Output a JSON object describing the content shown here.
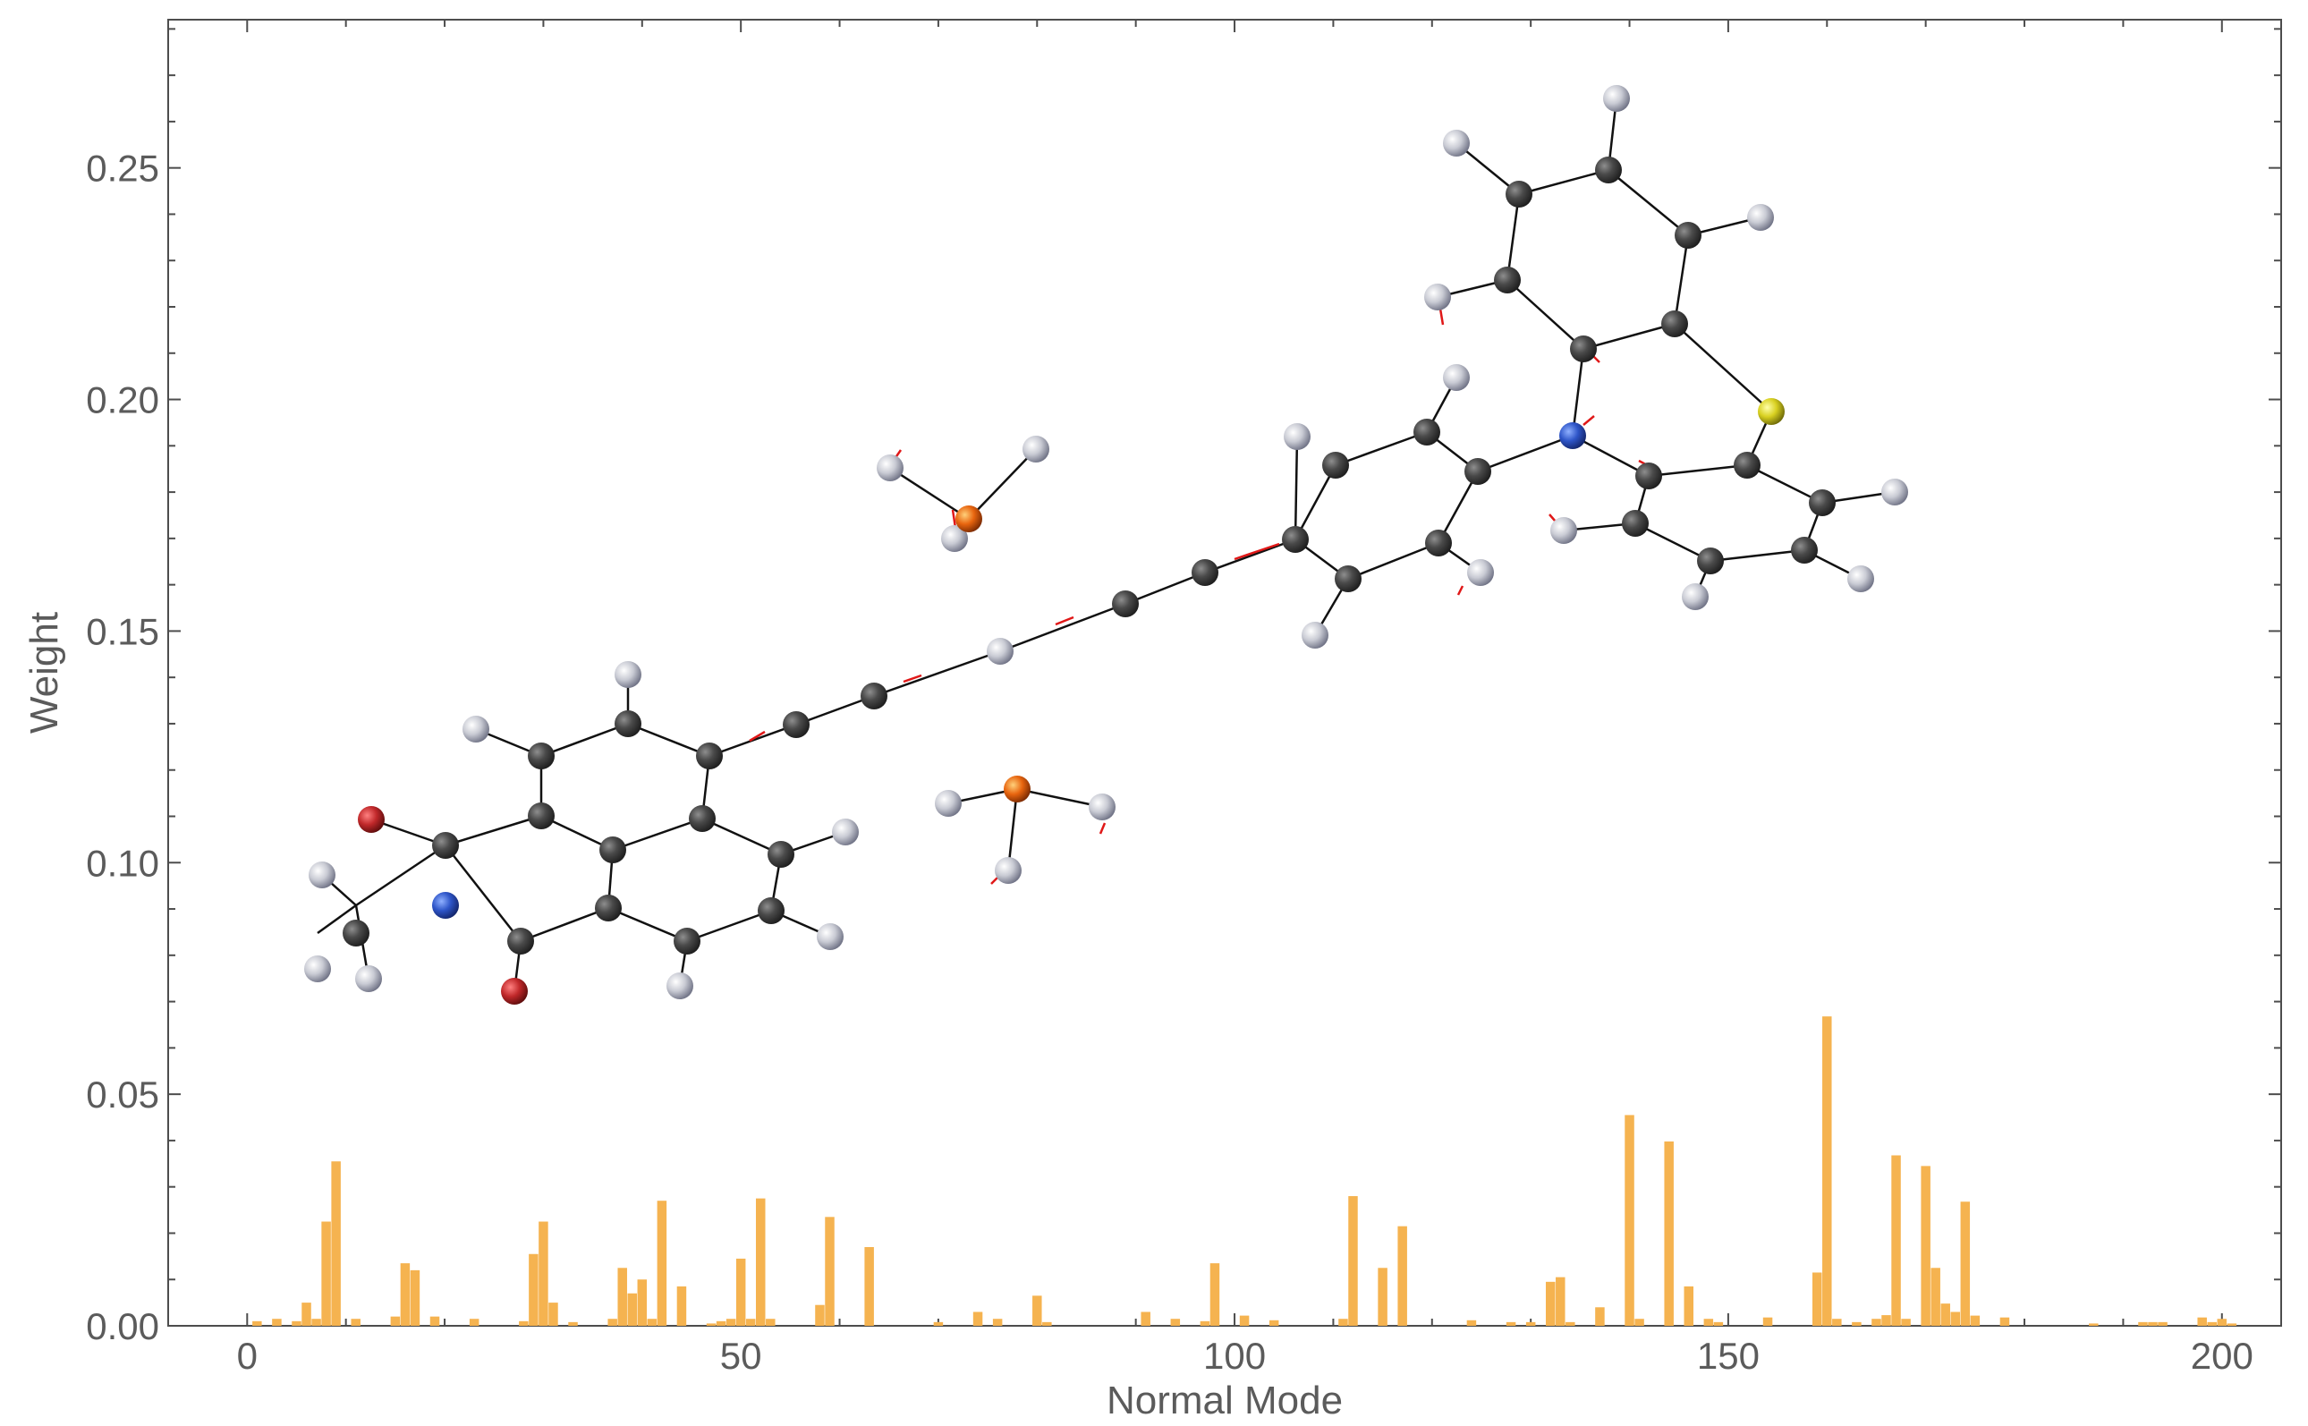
{
  "chart_data": {
    "type": "bar",
    "xlabel": "Normal Mode",
    "ylabel": "Weight",
    "xlim": [
      -8,
      206
    ],
    "ylim": [
      0,
      0.282
    ],
    "xticks": [
      0,
      50,
      100,
      150,
      200
    ],
    "xtick_labels": [
      "0",
      "50",
      "100",
      "150",
      "200"
    ],
    "yticks": [
      0,
      0.05,
      0.1,
      0.15,
      0.2,
      0.25
    ],
    "ytick_labels": [
      "0.00",
      "0.05",
      "0.10",
      "0.15",
      "0.20",
      "0.25"
    ],
    "grid": false,
    "bar_color": "#f5b350",
    "x": [
      1,
      3,
      5,
      6,
      7,
      8,
      9,
      11,
      15,
      16,
      17,
      19,
      23,
      28,
      29,
      30,
      31,
      33,
      37,
      38,
      39,
      40,
      41,
      42,
      44,
      47,
      48,
      49,
      50,
      51,
      52,
      53,
      58,
      59,
      63,
      70,
      74,
      76,
      80,
      81,
      91,
      94,
      97,
      98,
      101,
      104,
      111,
      112,
      115,
      117,
      124,
      128,
      130,
      132,
      133,
      134,
      137,
      140,
      141,
      144,
      146,
      148,
      149,
      154,
      159,
      160,
      161,
      163,
      165,
      166,
      167,
      168,
      170,
      171,
      172,
      173,
      174,
      175,
      178,
      187,
      192,
      193,
      194,
      198,
      199,
      200,
      201
    ],
    "values": [
      0.001,
      0.0015,
      0.001,
      0.005,
      0.0015,
      0.0225,
      0.0355,
      0.0015,
      0.002,
      0.0135,
      0.012,
      0.002,
      0.0015,
      0.001,
      0.0155,
      0.0225,
      0.005,
      0.0008,
      0.0015,
      0.0125,
      0.007,
      0.01,
      0.0015,
      0.027,
      0.0085,
      0.0005,
      0.001,
      0.0015,
      0.0145,
      0.0015,
      0.0275,
      0.0015,
      0.0045,
      0.0235,
      0.017,
      0.0008,
      0.003,
      0.0015,
      0.0065,
      0.0008,
      0.003,
      0.0015,
      0.001,
      0.0135,
      0.0022,
      0.0012,
      0.0015,
      0.028,
      0.0125,
      0.0215,
      0.0012,
      0.0008,
      0.0008,
      0.0095,
      0.0105,
      0.0008,
      0.004,
      0.0455,
      0.0015,
      0.0398,
      0.0085,
      0.0015,
      0.0008,
      0.0018,
      0.0115,
      0.0668,
      0.0015,
      0.0008,
      0.0015,
      0.0023,
      0.0368,
      0.0015,
      0.0345,
      0.0125,
      0.0048,
      0.003,
      0.0268,
      0.0022,
      0.0018,
      0.0005,
      0.0008,
      0.0008,
      0.0008,
      0.0018,
      0.0008,
      0.0015,
      0.0005
    ]
  },
  "inset": {
    "description_icon": "molecule-structure-icon",
    "atom_colors": {
      "carbon": "#3a3a3a",
      "hydrogen": "#c8c8d2",
      "nitrogen": "#2e55c8",
      "oxygen": "#c0282a",
      "phosphorus": "#e8650f",
      "sulfur": "#d8d020"
    }
  }
}
